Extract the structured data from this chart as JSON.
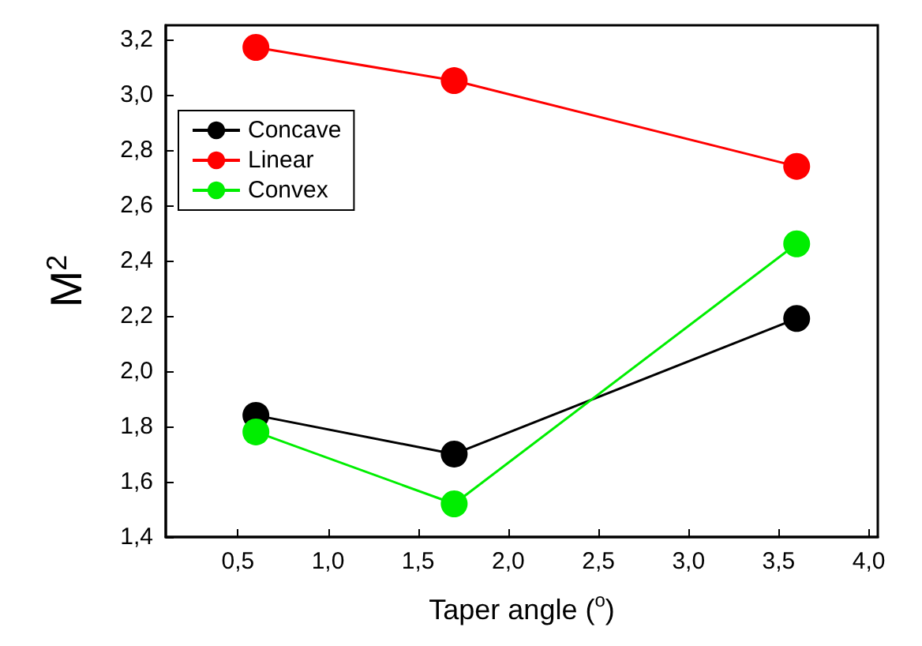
{
  "chart_data": {
    "type": "line",
    "xlabel": "Taper angle ($^{o}$)",
    "ylabel": "M$^{2}$",
    "x": [
      0.6,
      1.7,
      3.6
    ],
    "series": [
      {
        "name": "Concave",
        "color": "#000000",
        "values": [
          1.84,
          1.7,
          2.19
        ]
      },
      {
        "name": "Linear",
        "color": "#ff0000",
        "values": [
          3.17,
          3.05,
          2.74
        ]
      },
      {
        "name": "Convex",
        "color": "#00ee00",
        "values": [
          1.78,
          1.52,
          2.46
        ]
      }
    ],
    "xlim": [
      0.1,
      4.05
    ],
    "ylim": [
      1.4,
      3.25
    ],
    "xticks": [
      {
        "value": 0.5,
        "label": "0,5"
      },
      {
        "value": 1.0,
        "label": "1,0"
      },
      {
        "value": 1.5,
        "label": "1,5"
      },
      {
        "value": 2.0,
        "label": "2,0"
      },
      {
        "value": 2.5,
        "label": "2,5"
      },
      {
        "value": 3.0,
        "label": "3,0"
      },
      {
        "value": 3.5,
        "label": "3,5"
      },
      {
        "value": 4.0,
        "label": "4,0"
      }
    ],
    "yticks": [
      {
        "value": 1.4,
        "label": "1,4"
      },
      {
        "value": 1.6,
        "label": "1,6"
      },
      {
        "value": 1.8,
        "label": "1,8"
      },
      {
        "value": 2.0,
        "label": "2,0"
      },
      {
        "value": 2.2,
        "label": "2,2"
      },
      {
        "value": 2.4,
        "label": "2,4"
      },
      {
        "value": 2.6,
        "label": "2,6"
      },
      {
        "value": 2.8,
        "label": "2,8"
      },
      {
        "value": 3.0,
        "label": "3,0"
      },
      {
        "value": 3.2,
        "label": "3,2"
      }
    ],
    "legend": "top left",
    "marker": "circle",
    "line_style": "solid"
  }
}
